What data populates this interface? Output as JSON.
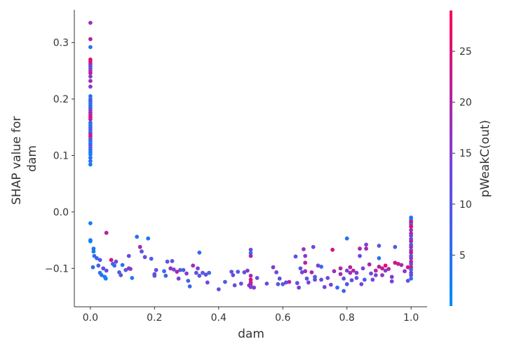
{
  "chart_data": {
    "type": "scatter",
    "xlabel": "dam",
    "ylabel_lines": [
      "SHAP value for",
      "dam"
    ],
    "xlim": [
      -0.05,
      1.05
    ],
    "ylim": [
      -0.168,
      0.358
    ],
    "xticks": [
      0.0,
      0.2,
      0.4,
      0.6,
      0.8,
      1.0
    ],
    "xtick_labels": [
      "0.0",
      "0.2",
      "0.4",
      "0.6",
      "0.8",
      "1.0"
    ],
    "yticks": [
      -0.1,
      0.0,
      0.1,
      0.2,
      0.3
    ],
    "ytick_labels": [
      "−0.1",
      "0.0",
      "0.1",
      "0.2",
      "0.3"
    ],
    "colorbar": {
      "label": "pWeakC(out)",
      "range": [
        0,
        29
      ],
      "ticks": [
        5,
        10,
        15,
        20,
        25
      ],
      "tick_labels": [
        "5",
        "10",
        "15",
        "20",
        "25"
      ],
      "color_low": "#008bfb",
      "color_mid": "#7c3fd8",
      "color_high": "#ff0052"
    },
    "points": [
      [
        0.0,
        0.335,
        18
      ],
      [
        0.0,
        0.306,
        22
      ],
      [
        0.0,
        0.292,
        6
      ],
      [
        0.0,
        0.27,
        24
      ],
      [
        0.0,
        0.266,
        26
      ],
      [
        0.0,
        0.262,
        20
      ],
      [
        0.0,
        0.258,
        14
      ],
      [
        0.0,
        0.254,
        10
      ],
      [
        0.0,
        0.25,
        17
      ],
      [
        0.0,
        0.246,
        23
      ],
      [
        0.0,
        0.24,
        15
      ],
      [
        0.0,
        0.232,
        19
      ],
      [
        0.0,
        0.222,
        16
      ],
      [
        0.0,
        0.205,
        4
      ],
      [
        0.0,
        0.2,
        8
      ],
      [
        0.0,
        0.196,
        12
      ],
      [
        0.0,
        0.192,
        2
      ],
      [
        0.0,
        0.188,
        5
      ],
      [
        0.0,
        0.184,
        9
      ],
      [
        0.0,
        0.18,
        13
      ],
      [
        0.0,
        0.176,
        21
      ],
      [
        0.0,
        0.172,
        18
      ],
      [
        0.0,
        0.168,
        25
      ],
      [
        0.0,
        0.164,
        22
      ],
      [
        0.0,
        0.158,
        7
      ],
      [
        0.0,
        0.154,
        3
      ],
      [
        0.0,
        0.15,
        6
      ],
      [
        0.0,
        0.146,
        11
      ],
      [
        0.0,
        0.142,
        4
      ],
      [
        0.0,
        0.138,
        19
      ],
      [
        0.0,
        0.134,
        26
      ],
      [
        0.0,
        0.13,
        12
      ],
      [
        0.0,
        0.126,
        8
      ],
      [
        0.0,
        0.122,
        2
      ],
      [
        0.0,
        0.118,
        14
      ],
      [
        0.0,
        0.114,
        5
      ],
      [
        0.0,
        0.11,
        9
      ],
      [
        0.0,
        0.106,
        3
      ],
      [
        0.0,
        0.102,
        1
      ],
      [
        0.0,
        0.096,
        4
      ],
      [
        0.0,
        0.09,
        6
      ],
      [
        0.0,
        0.084,
        2
      ],
      [
        0.0,
        -0.02,
        3
      ],
      [
        0.0,
        -0.05,
        4
      ],
      [
        0.0,
        -0.052,
        2
      ],
      [
        0.01,
        -0.065,
        3
      ],
      [
        0.01,
        -0.07,
        4
      ],
      [
        0.012,
        -0.078,
        5
      ],
      [
        0.008,
        -0.098,
        6
      ],
      [
        0.02,
        -0.082,
        7
      ],
      [
        0.025,
        -0.095,
        9
      ],
      [
        0.03,
        -0.085,
        10
      ],
      [
        0.03,
        -0.108,
        5
      ],
      [
        0.035,
        -0.112,
        4
      ],
      [
        0.04,
        -0.1,
        11
      ],
      [
        0.045,
        -0.115,
        3
      ],
      [
        0.048,
        -0.118,
        2
      ],
      [
        0.05,
        -0.037,
        21
      ],
      [
        0.05,
        -0.104,
        12
      ],
      [
        0.065,
        -0.085,
        24
      ],
      [
        0.07,
        -0.092,
        8
      ],
      [
        0.075,
        -0.095,
        6
      ],
      [
        0.08,
        -0.088,
        14
      ],
      [
        0.09,
        -0.107,
        9
      ],
      [
        0.095,
        -0.112,
        11
      ],
      [
        0.1,
        -0.094,
        5
      ],
      [
        0.11,
        -0.103,
        10
      ],
      [
        0.12,
        -0.078,
        13
      ],
      [
        0.12,
        -0.1,
        19
      ],
      [
        0.125,
        -0.101,
        15
      ],
      [
        0.13,
        -0.117,
        4
      ],
      [
        0.145,
        -0.044,
        5
      ],
      [
        0.155,
        -0.062,
        20
      ],
      [
        0.16,
        -0.07,
        11
      ],
      [
        0.17,
        -0.08,
        12
      ],
      [
        0.18,
        -0.047,
        4
      ],
      [
        0.19,
        -0.083,
        9
      ],
      [
        0.2,
        -0.113,
        10
      ],
      [
        0.2,
        -0.11,
        11
      ],
      [
        0.205,
        -0.103,
        12
      ],
      [
        0.23,
        -0.105,
        6
      ],
      [
        0.235,
        -0.113,
        8
      ],
      [
        0.24,
        -0.088,
        10
      ],
      [
        0.25,
        -0.1,
        19
      ],
      [
        0.255,
        -0.087,
        11
      ],
      [
        0.26,
        -0.102,
        13
      ],
      [
        0.27,
        -0.106,
        21
      ],
      [
        0.275,
        -0.118,
        14
      ],
      [
        0.28,
        -0.103,
        10
      ],
      [
        0.29,
        -0.103,
        9
      ],
      [
        0.3,
        -0.109,
        16
      ],
      [
        0.305,
        -0.122,
        8
      ],
      [
        0.31,
        -0.132,
        7
      ],
      [
        0.32,
        -0.095,
        18
      ],
      [
        0.33,
        -0.108,
        12
      ],
      [
        0.335,
        -0.1,
        14
      ],
      [
        0.34,
        -0.072,
        6
      ],
      [
        0.34,
        -0.113,
        9
      ],
      [
        0.35,
        -0.108,
        10
      ],
      [
        0.36,
        -0.111,
        11
      ],
      [
        0.365,
        -0.125,
        14
      ],
      [
        0.37,
        -0.108,
        7
      ],
      [
        0.4,
        -0.137,
        12
      ],
      [
        0.42,
        -0.124,
        9
      ],
      [
        0.44,
        -0.106,
        11
      ],
      [
        0.445,
        -0.112,
        13
      ],
      [
        0.45,
        -0.13,
        12
      ],
      [
        0.46,
        -0.106,
        10
      ],
      [
        0.47,
        -0.127,
        13
      ],
      [
        0.48,
        -0.107,
        11
      ],
      [
        0.49,
        -0.104,
        15
      ],
      [
        0.495,
        -0.13,
        16
      ],
      [
        0.5,
        -0.067,
        12
      ],
      [
        0.5,
        -0.073,
        5
      ],
      [
        0.5,
        -0.078,
        20
      ],
      [
        0.5,
        -0.113,
        18
      ],
      [
        0.5,
        -0.12,
        24
      ],
      [
        0.5,
        -0.125,
        22
      ],
      [
        0.5,
        -0.129,
        20
      ],
      [
        0.5,
        -0.133,
        14
      ],
      [
        0.51,
        -0.134,
        15
      ],
      [
        0.52,
        -0.117,
        13
      ],
      [
        0.55,
        -0.127,
        12
      ],
      [
        0.57,
        -0.098,
        16
      ],
      [
        0.58,
        -0.107,
        13
      ],
      [
        0.585,
        -0.128,
        10
      ],
      [
        0.59,
        -0.118,
        11
      ],
      [
        0.6,
        -0.128,
        9
      ],
      [
        0.61,
        -0.125,
        13
      ],
      [
        0.62,
        -0.124,
        20
      ],
      [
        0.64,
        -0.079,
        11
      ],
      [
        0.645,
        -0.126,
        12
      ],
      [
        0.65,
        -0.134,
        14
      ],
      [
        0.655,
        -0.1,
        10
      ],
      [
        0.66,
        -0.107,
        14
      ],
      [
        0.665,
        -0.066,
        18
      ],
      [
        0.67,
        -0.078,
        16
      ],
      [
        0.67,
        -0.09,
        21
      ],
      [
        0.67,
        -0.105,
        17
      ],
      [
        0.675,
        -0.118,
        10
      ],
      [
        0.68,
        -0.125,
        14
      ],
      [
        0.69,
        -0.107,
        20
      ],
      [
        0.695,
        -0.062,
        13
      ],
      [
        0.7,
        -0.12,
        12
      ],
      [
        0.7,
        -0.115,
        9
      ],
      [
        0.71,
        -0.095,
        14
      ],
      [
        0.72,
        -0.097,
        7
      ],
      [
        0.72,
        -0.12,
        11
      ],
      [
        0.73,
        -0.133,
        12
      ],
      [
        0.74,
        -0.117,
        13
      ],
      [
        0.75,
        -0.129,
        14
      ],
      [
        0.755,
        -0.067,
        24
      ],
      [
        0.76,
        -0.105,
        18
      ],
      [
        0.77,
        -0.134,
        6
      ],
      [
        0.78,
        -0.1,
        20
      ],
      [
        0.78,
        -0.11,
        19
      ],
      [
        0.79,
        -0.14,
        8
      ],
      [
        0.79,
        -0.118,
        11
      ],
      [
        0.8,
        -0.104,
        15
      ],
      [
        0.8,
        -0.128,
        10
      ],
      [
        0.8,
        -0.047,
        5
      ],
      [
        0.81,
        -0.108,
        18
      ],
      [
        0.81,
        -0.098,
        21
      ],
      [
        0.815,
        -0.121,
        11
      ],
      [
        0.82,
        -0.104,
        20
      ],
      [
        0.83,
        -0.108,
        16
      ],
      [
        0.83,
        -0.117,
        12
      ],
      [
        0.84,
        -0.065,
        20
      ],
      [
        0.84,
        -0.078,
        12
      ],
      [
        0.845,
        -0.128,
        13
      ],
      [
        0.85,
        -0.1,
        14
      ],
      [
        0.855,
        -0.12,
        9
      ],
      [
        0.86,
        -0.065,
        19
      ],
      [
        0.86,
        -0.058,
        15
      ],
      [
        0.87,
        -0.093,
        20
      ],
      [
        0.875,
        -0.109,
        12
      ],
      [
        0.88,
        -0.12,
        13
      ],
      [
        0.89,
        -0.104,
        20
      ],
      [
        0.89,
        -0.112,
        14
      ],
      [
        0.9,
        -0.06,
        10
      ],
      [
        0.9,
        -0.082,
        5
      ],
      [
        0.9,
        -0.097,
        22
      ],
      [
        0.91,
        -0.1,
        23
      ],
      [
        0.91,
        -0.112,
        18
      ],
      [
        0.92,
        -0.095,
        26
      ],
      [
        0.92,
        -0.104,
        15
      ],
      [
        0.93,
        -0.101,
        20
      ],
      [
        0.94,
        -0.115,
        16
      ],
      [
        0.94,
        -0.123,
        13
      ],
      [
        0.95,
        -0.062,
        9
      ],
      [
        0.95,
        -0.09,
        24
      ],
      [
        0.96,
        -0.092,
        22
      ],
      [
        0.97,
        -0.094,
        19
      ],
      [
        0.98,
        -0.105,
        17
      ],
      [
        0.99,
        -0.122,
        12
      ],
      [
        0.99,
        -0.098,
        23
      ],
      [
        1.0,
        -0.01,
        6
      ],
      [
        1.0,
        -0.014,
        4
      ],
      [
        1.0,
        -0.018,
        28
      ],
      [
        1.0,
        -0.022,
        9
      ],
      [
        1.0,
        -0.026,
        27
      ],
      [
        1.0,
        -0.032,
        16
      ],
      [
        1.0,
        -0.038,
        22
      ],
      [
        1.0,
        -0.042,
        14
      ],
      [
        1.0,
        -0.048,
        11
      ],
      [
        1.0,
        -0.052,
        20
      ],
      [
        1.0,
        -0.058,
        7
      ],
      [
        1.0,
        -0.062,
        18
      ],
      [
        1.0,
        -0.068,
        12
      ],
      [
        1.0,
        -0.072,
        25
      ],
      [
        1.0,
        -0.078,
        9
      ],
      [
        1.0,
        -0.082,
        16
      ],
      [
        1.0,
        -0.088,
        21
      ],
      [
        1.0,
        -0.092,
        13
      ],
      [
        1.0,
        -0.098,
        24
      ],
      [
        1.0,
        -0.102,
        8
      ],
      [
        1.0,
        -0.108,
        15
      ],
      [
        1.0,
        -0.112,
        11
      ],
      [
        1.0,
        -0.118,
        5
      ]
    ]
  }
}
